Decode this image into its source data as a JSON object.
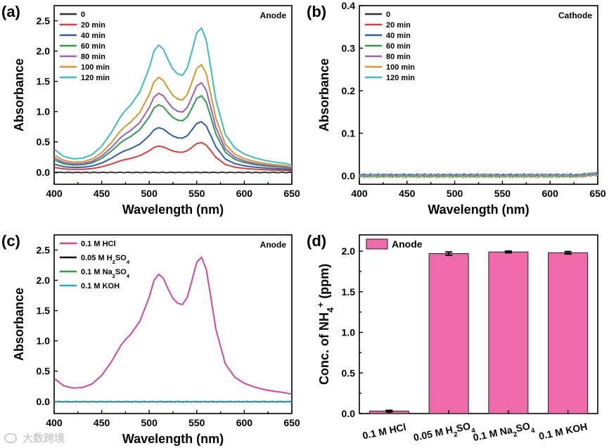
{
  "watermark": "大数跨境",
  "chart_data": [
    {
      "id": "a",
      "type": "line",
      "panel_label": "(a)",
      "tag": "Anode",
      "xlabel": "Wavelength (nm)",
      "ylabel": "Absorbance",
      "xlim": [
        400,
        650
      ],
      "ylim": [
        -0.2,
        2.75
      ],
      "xticks": [
        "400",
        "450",
        "500",
        "550",
        "600",
        "650"
      ],
      "yticks": [
        "0.0",
        "0.5",
        "1.0",
        "1.5",
        "2.0",
        "2.5"
      ],
      "ytick_values": [
        0,
        0.5,
        1.0,
        1.5,
        2.0,
        2.5
      ],
      "legend_position": "top-left",
      "series": [
        {
          "name": "0",
          "color": "#333333",
          "scale": 0
        },
        {
          "name": "20 min",
          "color": "#e03c3c",
          "scale": 0.205
        },
        {
          "name": "40 min",
          "color": "#2e5ea8",
          "scale": 0.35
        },
        {
          "name": "60 min",
          "color": "#2f9a4e",
          "scale": 0.53
        },
        {
          "name": "80 min",
          "color": "#9a5fbf",
          "scale": 0.62
        },
        {
          "name": "100 min",
          "color": "#d9962b",
          "scale": 0.745
        },
        {
          "name": "120 min",
          "color": "#3cbcc4",
          "scale": 1.0
        }
      ],
      "spectrum_x": [
        400,
        410,
        420,
        430,
        440,
        450,
        460,
        470,
        475,
        480,
        490,
        500,
        505,
        510,
        515,
        520,
        525,
        530,
        535,
        540,
        545,
        550,
        555,
        560,
        565,
        570,
        580,
        590,
        600,
        610,
        620,
        630,
        640,
        650
      ],
      "spectrum_y": [
        0.38,
        0.26,
        0.22,
        0.23,
        0.29,
        0.43,
        0.65,
        0.92,
        1.02,
        1.1,
        1.32,
        1.72,
        2.0,
        2.1,
        2.03,
        1.85,
        1.7,
        1.62,
        1.6,
        1.72,
        2.0,
        2.3,
        2.38,
        2.18,
        1.7,
        1.2,
        0.62,
        0.4,
        0.3,
        0.24,
        0.2,
        0.17,
        0.15,
        0.12
      ]
    },
    {
      "id": "b",
      "type": "line",
      "panel_label": "(b)",
      "tag": "Cathode",
      "xlabel": "Wavelength (nm)",
      "ylabel": "Absorbance",
      "xlim": [
        400,
        650
      ],
      "ylim": [
        -0.02,
        0.4
      ],
      "xticks": [
        "400",
        "450",
        "500",
        "550",
        "600",
        "650"
      ],
      "yticks": [
        "0.0",
        "0.1",
        "0.2",
        "0.3",
        "0.4"
      ],
      "ytick_values": [
        0,
        0.1,
        0.2,
        0.3,
        0.4
      ],
      "legend_position": "top-left",
      "series": [
        {
          "name": "0",
          "color": "#333333",
          "offset": 0.0
        },
        {
          "name": "20 min",
          "color": "#e03c3c",
          "offset": 0.002
        },
        {
          "name": "40 min",
          "color": "#2e5ea8",
          "offset": 0.001
        },
        {
          "name": "60 min",
          "color": "#2f9a4e",
          "offset": -0.001
        },
        {
          "name": "80 min",
          "color": "#9a5fbf",
          "offset": 0.0015
        },
        {
          "name": "100 min",
          "color": "#d9962b",
          "offset": -0.002
        },
        {
          "name": "120 min",
          "color": "#3cbcc4",
          "offset": 0.0005
        }
      ]
    },
    {
      "id": "c",
      "type": "line",
      "panel_label": "(c)",
      "tag": "Anode",
      "xlabel": "Wavelength (nm)",
      "ylabel": "Absorbance",
      "xlim": [
        400,
        650
      ],
      "ylim": [
        -0.2,
        2.75
      ],
      "xticks": [
        "400",
        "450",
        "500",
        "550",
        "600",
        "650"
      ],
      "yticks": [
        "0.0",
        "0.5",
        "1.0",
        "1.5",
        "2.0",
        "2.5"
      ],
      "ytick_values": [
        0,
        0.5,
        1.0,
        1.5,
        2.0,
        2.5
      ],
      "legend_position": "top-left",
      "series": [
        {
          "name": "0.1 M HCl",
          "sub": "",
          "suffix": "",
          "color": "#d9449a",
          "scale": 1.0
        },
        {
          "name": "0.05 M H",
          "sub": "2",
          "suffix": "SO",
          "sub2": "4",
          "color": "#111111",
          "scale": 0
        },
        {
          "name": "0.1 M Na",
          "sub": "2",
          "suffix": "SO",
          "sub2": "4",
          "color": "#2f9a4e",
          "scale": 0
        },
        {
          "name": "0.1 M KOH",
          "sub": "",
          "suffix": "",
          "color": "#2aa4c8",
          "scale": 0
        }
      ]
    },
    {
      "id": "d",
      "type": "bar",
      "panel_label": "(d)",
      "legend": "Anode",
      "ylabel_main": "Conc. of NH",
      "ylabel_sub": "4",
      "ylabel_sup": "+",
      "ylabel_end": " (ppm)",
      "ylim": [
        0,
        2.2
      ],
      "yticks": [
        "0.0",
        "0.5",
        "1.0",
        "1.5",
        "2.0"
      ],
      "ytick_values": [
        0,
        0.5,
        1.0,
        1.5,
        2.0
      ],
      "bar_color": "#ee6aa8",
      "categories": [
        {
          "main": "0.1 M HCl",
          "sub": "",
          "end": ""
        },
        {
          "main": "0.05 M H",
          "sub": "2",
          "mid": "SO",
          "sub2": "4"
        },
        {
          "main": "0.1 M Na",
          "sub": "2",
          "mid": "SO",
          "sub2": "4"
        },
        {
          "main": "0.1 M KOH",
          "sub": "",
          "end": ""
        }
      ],
      "values": [
        0.03,
        1.97,
        1.99,
        1.98
      ],
      "errors": [
        0.01,
        0.02,
        0.01,
        0.015
      ]
    }
  ]
}
